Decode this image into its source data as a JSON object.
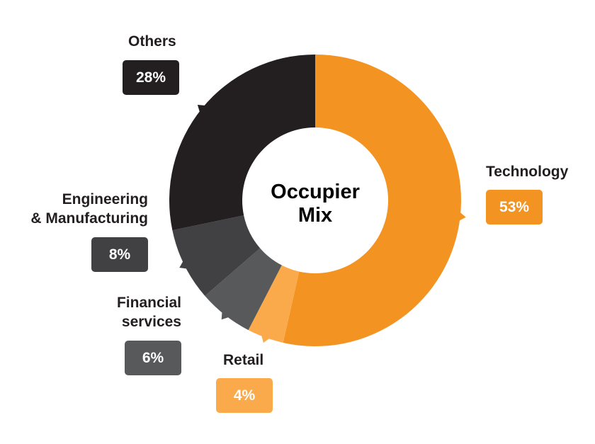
{
  "chart_data": {
    "type": "pie",
    "donut": true,
    "title": "Occupier Mix",
    "slices": [
      {
        "label": "Technology",
        "value": 53,
        "display": "53%",
        "color": "#f39321"
      },
      {
        "label": "Retail",
        "value": 4,
        "display": "4%",
        "color": "#fbaa4b"
      },
      {
        "label": "Financial services",
        "value": 6,
        "display": "6%",
        "color": "#58595b"
      },
      {
        "label": "Engineering & Manufacturing",
        "value": 8,
        "display": "8%",
        "color": "#414042"
      },
      {
        "label": "Others",
        "value": 28,
        "display": "28%",
        "color": "#231f20"
      }
    ],
    "label_lines": {
      "financial": [
        "Financial",
        "services"
      ],
      "engineering": [
        "Engineering",
        "& Manufacturing"
      ]
    }
  }
}
